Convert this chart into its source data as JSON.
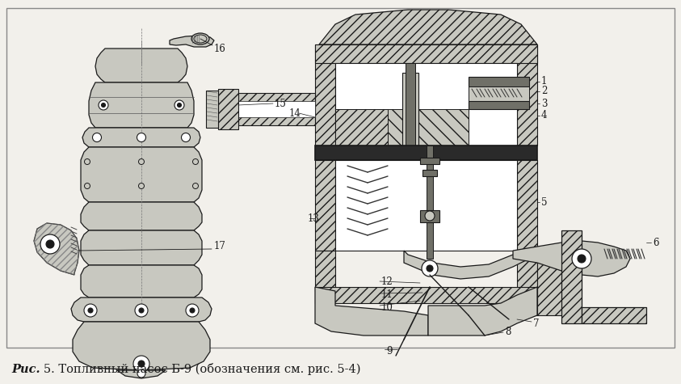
{
  "background_color": "#f2f0eb",
  "border_color": "#888888",
  "caption_bold": "Рис.",
  "caption_number": "   5.",
  "caption_text": " Топливный насос Б-9 (обозначения см. рис. 5-4)",
  "caption_fontsize": 10.5,
  "line_color": "#1a1a1a",
  "hatch_color": "#555555",
  "gray_fill": "#c8c8c0",
  "dark_gray": "#707068",
  "white": "#ffffff",
  "figsize": [
    8.43,
    4.75
  ],
  "dpi": 100
}
